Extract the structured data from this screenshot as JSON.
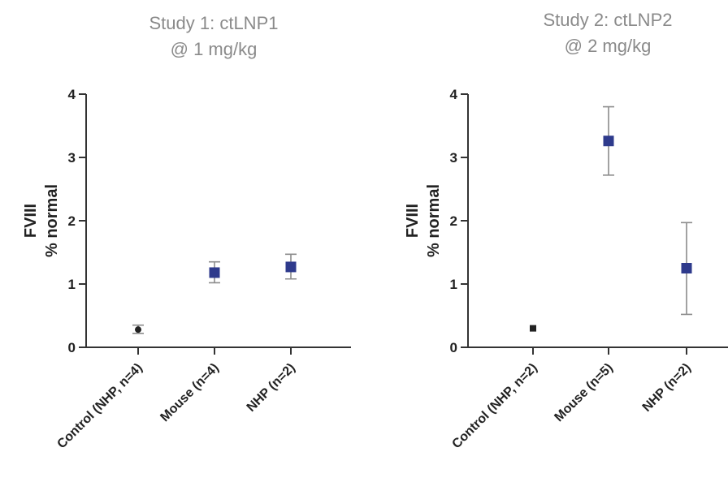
{
  "chart_data": [
    {
      "type": "scatter",
      "title": [
        "Study 1: ctLNP1",
        "@ 1 mg/kg"
      ],
      "ylabel": [
        "FVIII",
        "% normal"
      ],
      "ylim": [
        0,
        4
      ],
      "yticks": [
        "0",
        "1",
        "2",
        "3",
        "4"
      ],
      "grid": false,
      "categories": [
        "Control (NHP, n=4)",
        "Mouse (n=4)",
        "NHP (n=2)"
      ],
      "values": [
        0.28,
        1.18,
        1.27
      ],
      "err_low": [
        0.22,
        1.02,
        1.08
      ],
      "err_high": [
        0.35,
        1.35,
        1.47
      ],
      "colors": [
        "#222222",
        "#2e3a8c",
        "#2e3a8c"
      ]
    },
    {
      "type": "scatter",
      "title": [
        "Study 2: ctLNP2",
        "@ 2 mg/kg"
      ],
      "ylabel": [
        "FVIII",
        "% normal"
      ],
      "ylim": [
        0,
        4
      ],
      "yticks": [
        "0",
        "1",
        "2",
        "3",
        "4"
      ],
      "grid": false,
      "categories": [
        "Control (NHP, n=2)",
        "Mouse (n=5)",
        "NHP (n=2)"
      ],
      "values": [
        0.3,
        3.26,
        1.25
      ],
      "err_low": [
        0.3,
        2.72,
        0.52
      ],
      "err_high": [
        0.3,
        3.8,
        1.97
      ],
      "colors": [
        "#222222",
        "#2e3a8c",
        "#2e3a8c"
      ]
    }
  ]
}
